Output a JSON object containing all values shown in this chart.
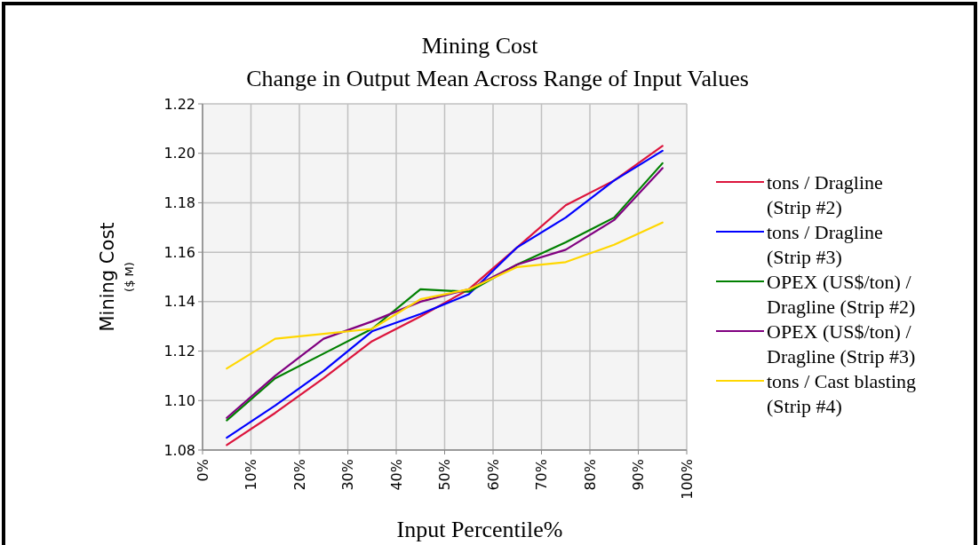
{
  "chart_data": {
    "type": "line",
    "title": "Mining Cost",
    "subtitle": "Change in Output Mean Across Range of Input Values",
    "xlabel": "Input Percentile%",
    "ylabel": "Mining Cost\n($ M)",
    "x": [
      5,
      15,
      25,
      35,
      45,
      55,
      65,
      75,
      85,
      95
    ],
    "xlim": [
      0,
      100
    ],
    "xticks": [
      {
        "value": 0,
        "label": "0%"
      },
      {
        "value": 10,
        "label": "10%"
      },
      {
        "value": 20,
        "label": "20%"
      },
      {
        "value": 30,
        "label": "30%"
      },
      {
        "value": 40,
        "label": "40%"
      },
      {
        "value": 50,
        "label": "50%"
      },
      {
        "value": 60,
        "label": "60%"
      },
      {
        "value": 70,
        "label": "70%"
      },
      {
        "value": 80,
        "label": "80%"
      },
      {
        "value": 90,
        "label": "90%"
      },
      {
        "value": 100,
        "label": "100%"
      }
    ],
    "ylim": [
      1.08,
      1.22
    ],
    "yticks": [
      {
        "value": 1.08,
        "label": "1.08"
      },
      {
        "value": 1.1,
        "label": "1.10"
      },
      {
        "value": 1.12,
        "label": "1.12"
      },
      {
        "value": 1.14,
        "label": "1.14"
      },
      {
        "value": 1.16,
        "label": "1.16"
      },
      {
        "value": 1.18,
        "label": "1.18"
      },
      {
        "value": 1.2,
        "label": "1.20"
      },
      {
        "value": 1.22,
        "label": "1.22"
      }
    ],
    "grid": true,
    "legend": "right",
    "marker": "none",
    "line_style": "solid",
    "series": [
      {
        "name": "tons / Dragline (Strip #2)",
        "color": "#dc143c",
        "values": [
          1.082,
          1.095,
          1.109,
          1.124,
          1.134,
          1.145,
          1.162,
          1.179,
          1.189,
          1.203
        ]
      },
      {
        "name": "tons / Dragline (Strip #3)",
        "color": "#0000ff",
        "values": [
          1.085,
          1.098,
          1.112,
          1.128,
          1.135,
          1.143,
          1.162,
          1.174,
          1.189,
          1.201
        ]
      },
      {
        "name": "OPEX (US$/ton) / Dragline (Strip #2)",
        "color": "#008000",
        "values": [
          1.092,
          1.109,
          1.119,
          1.129,
          1.145,
          1.144,
          1.155,
          1.164,
          1.174,
          1.196
        ]
      },
      {
        "name": "OPEX (US$/ton) / Dragline (Strip #3)",
        "color": "#800080",
        "values": [
          1.093,
          1.11,
          1.125,
          1.132,
          1.14,
          1.145,
          1.155,
          1.161,
          1.173,
          1.194
        ]
      },
      {
        "name": "tons / Cast blasting (Strip #4)",
        "color": "#ffd700",
        "values": [
          1.113,
          1.125,
          1.127,
          1.129,
          1.141,
          1.145,
          1.154,
          1.156,
          1.163,
          1.172
        ]
      }
    ]
  }
}
